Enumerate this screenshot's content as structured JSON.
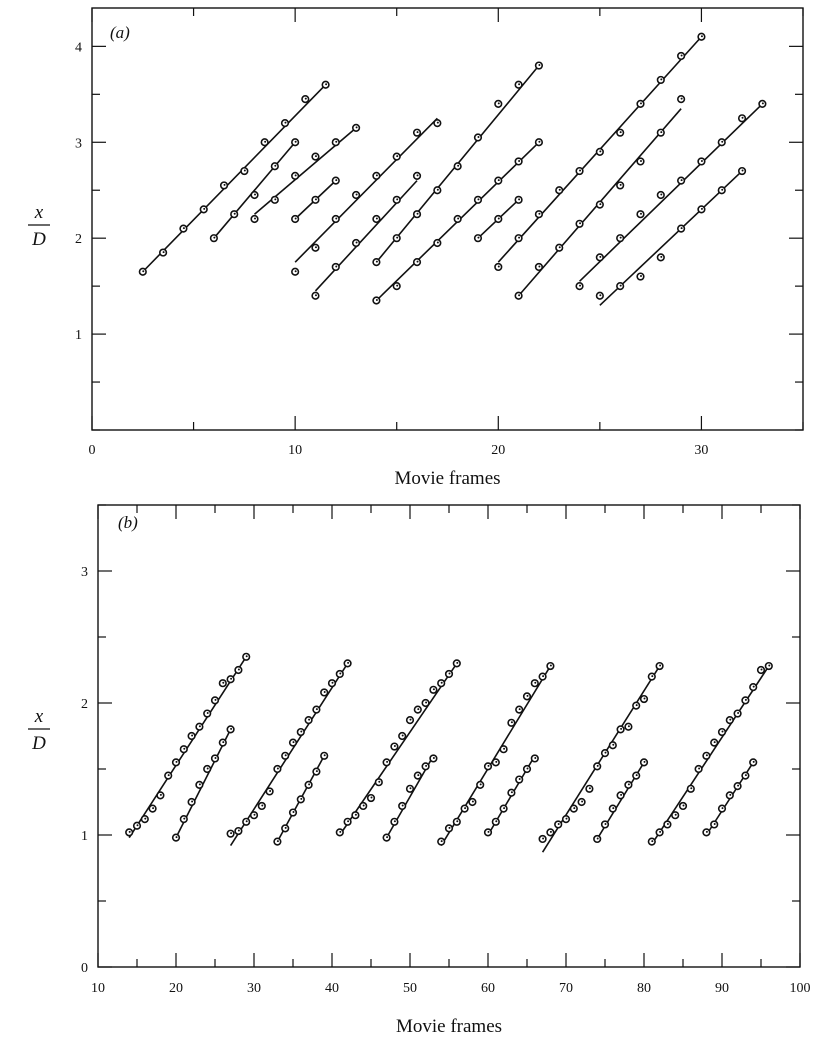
{
  "chart_data": [
    {
      "type": "scatter",
      "panel_label": "(a)",
      "xlabel": "Movie frames",
      "ylabel_num": "x",
      "ylabel_den": "D",
      "xlim": [
        0,
        35
      ],
      "ylim": [
        0,
        4.4
      ],
      "xticks": [
        0,
        10,
        20,
        30
      ],
      "yticks": [
        1,
        2,
        3,
        4
      ],
      "minor_xstep": 5,
      "minor_ystep": 0.5,
      "grid": false,
      "series": [
        {
          "x": [
            2.5,
            3.5,
            4.5,
            5.5,
            6.5,
            7.5,
            8.5,
            9.5,
            10.5,
            11.5
          ],
          "y": [
            1.65,
            1.85,
            2.1,
            2.3,
            2.55,
            2.7,
            3.0,
            3.2,
            3.45,
            3.6
          ],
          "line": [
            [
              2.5,
              1.65
            ],
            [
              11.5,
              3.6
            ]
          ]
        },
        {
          "x": [
            6.0,
            7.0,
            8.0,
            9.0,
            10.0
          ],
          "y": [
            2.0,
            2.25,
            2.45,
            2.75,
            3.0
          ],
          "line": [
            [
              6.0,
              2.0
            ],
            [
              10.0,
              3.0
            ]
          ]
        },
        {
          "x": [
            8.0,
            9.0,
            10.0,
            11.0,
            12.0,
            13.0
          ],
          "y": [
            2.2,
            2.4,
            2.65,
            2.85,
            3.0,
            3.15
          ],
          "line": [
            [
              8.0,
              2.25
            ],
            [
              13.0,
              3.15
            ]
          ]
        },
        {
          "x": [
            10.0,
            11.0,
            12.0
          ],
          "y": [
            2.2,
            2.4,
            2.6
          ],
          "line": [
            [
              10.0,
              2.2
            ],
            [
              12.0,
              2.6
            ]
          ]
        },
        {
          "x": [
            10.0,
            11.0,
            12.0,
            13.0,
            14.0,
            15.0,
            16.0,
            17.0
          ],
          "y": [
            1.65,
            1.9,
            2.2,
            2.45,
            2.65,
            2.85,
            3.1,
            3.2
          ],
          "line": [
            [
              10.0,
              1.75
            ],
            [
              17.0,
              3.25
            ]
          ]
        },
        {
          "x": [
            11.0,
            12.0,
            13.0,
            14.0,
            15.0,
            16.0
          ],
          "y": [
            1.4,
            1.7,
            1.95,
            2.2,
            2.4,
            2.65
          ],
          "line": [
            [
              11.0,
              1.45
            ],
            [
              16.0,
              2.6
            ]
          ]
        },
        {
          "x": [
            14.0,
            15.0,
            16.0,
            17.0,
            18.0,
            19.0,
            20.0,
            21.0,
            22.0
          ],
          "y": [
            1.75,
            2.0,
            2.25,
            2.5,
            2.75,
            3.05,
            3.4,
            3.6,
            3.8
          ],
          "line": [
            [
              14.0,
              1.75
            ],
            [
              22.0,
              3.8
            ]
          ]
        },
        {
          "x": [
            14.0,
            15.0,
            16.0,
            17.0,
            18.0,
            19.0,
            20.0,
            21.0,
            22.0
          ],
          "y": [
            1.35,
            1.5,
            1.75,
            1.95,
            2.2,
            2.4,
            2.6,
            2.8,
            3.0
          ],
          "line": [
            [
              14.0,
              1.35
            ],
            [
              22.0,
              3.0
            ]
          ]
        },
        {
          "x": [
            19.0,
            20.0,
            21.0
          ],
          "y": [
            2.0,
            2.2,
            2.4
          ],
          "line": [
            [
              19.0,
              2.0
            ],
            [
              21.0,
              2.4
            ]
          ]
        },
        {
          "x": [
            20.0,
            21.0,
            22.0,
            23.0,
            24.0,
            25.0,
            26.0,
            27.0,
            28.0,
            29.0,
            30.0
          ],
          "y": [
            1.7,
            2.0,
            2.25,
            2.5,
            2.7,
            2.9,
            3.1,
            3.4,
            3.65,
            3.9,
            4.1
          ],
          "line": [
            [
              20.0,
              1.75
            ],
            [
              30.0,
              4.1
            ]
          ]
        },
        {
          "x": [
            21.0,
            22.0,
            23.0,
            24.0,
            25.0,
            26.0,
            27.0,
            28.0,
            29.0
          ],
          "y": [
            1.4,
            1.7,
            1.9,
            2.15,
            2.35,
            2.55,
            2.8,
            3.1,
            3.45
          ],
          "line": [
            [
              21.0,
              1.4
            ],
            [
              29.0,
              3.35
            ]
          ]
        },
        {
          "x": [
            24.0,
            25.0,
            26.0,
            27.0,
            28.0,
            29.0,
            30.0,
            31.0,
            32.0,
            33.0
          ],
          "y": [
            1.5,
            1.8,
            2.0,
            2.25,
            2.45,
            2.6,
            2.8,
            3.0,
            3.25,
            3.4
          ],
          "line": [
            [
              24.0,
              1.55
            ],
            [
              33.0,
              3.4
            ]
          ]
        },
        {
          "x": [
            25.0,
            26.0,
            27.0,
            28.0,
            29.0,
            30.0,
            31.0,
            32.0
          ],
          "y": [
            1.4,
            1.5,
            1.6,
            1.8,
            2.1,
            2.3,
            2.5,
            2.7
          ],
          "line": [
            [
              25.0,
              1.3
            ],
            [
              32.0,
              2.7
            ]
          ]
        }
      ]
    },
    {
      "type": "scatter",
      "panel_label": "(b)",
      "xlabel": "Movie frames",
      "ylabel_num": "x",
      "ylabel_den": "D",
      "xlim": [
        10,
        100
      ],
      "ylim": [
        0,
        3.5
      ],
      "xticks": [
        10,
        20,
        30,
        40,
        50,
        60,
        70,
        80,
        90,
        100
      ],
      "yticks": [
        0,
        1,
        2,
        3
      ],
      "minor_xstep": 5,
      "minor_ystep": 0.5,
      "grid": false,
      "series": [
        {
          "x": [
            14,
            15,
            16,
            17,
            18,
            19,
            20,
            21,
            22,
            23,
            24,
            25,
            26,
            27,
            28,
            29
          ],
          "y": [
            1.02,
            1.07,
            1.12,
            1.2,
            1.3,
            1.45,
            1.55,
            1.65,
            1.75,
            1.82,
            1.92,
            2.02,
            2.15,
            2.18,
            2.25,
            2.35
          ],
          "line": [
            [
              14,
              0.98
            ],
            [
              29,
              2.35
            ]
          ]
        },
        {
          "x": [
            20,
            21,
            22,
            23,
            24,
            25,
            26,
            27
          ],
          "y": [
            0.98,
            1.12,
            1.25,
            1.38,
            1.5,
            1.58,
            1.7,
            1.8
          ],
          "line": [
            [
              20,
              0.98
            ],
            [
              27,
              1.8
            ]
          ]
        },
        {
          "x": [
            27,
            28,
            29,
            30,
            31,
            32,
            33,
            34,
            35,
            36,
            37,
            38,
            39,
            40,
            41,
            42
          ],
          "y": [
            1.01,
            1.03,
            1.1,
            1.15,
            1.22,
            1.33,
            1.5,
            1.6,
            1.7,
            1.78,
            1.87,
            1.95,
            2.08,
            2.15,
            2.22,
            2.3
          ],
          "line": [
            [
              27,
              0.92
            ],
            [
              42,
              2.3
            ]
          ]
        },
        {
          "x": [
            33,
            34,
            35,
            36,
            37,
            38,
            39
          ],
          "y": [
            0.95,
            1.05,
            1.17,
            1.27,
            1.38,
            1.48,
            1.6
          ],
          "line": [
            [
              33,
              0.95
            ],
            [
              39,
              1.6
            ]
          ]
        },
        {
          "x": [
            41,
            42,
            43,
            44,
            45,
            46,
            47,
            48,
            49,
            50,
            51,
            52,
            53,
            54,
            55,
            56
          ],
          "y": [
            1.02,
            1.1,
            1.15,
            1.22,
            1.28,
            1.4,
            1.55,
            1.67,
            1.75,
            1.87,
            1.95,
            2.0,
            2.1,
            2.15,
            2.22,
            2.3
          ],
          "line": [
            [
              41,
              1.0
            ],
            [
              56,
              2.3
            ]
          ]
        },
        {
          "x": [
            47,
            48,
            49,
            50,
            51,
            52,
            53
          ],
          "y": [
            0.98,
            1.1,
            1.22,
            1.35,
            1.45,
            1.52,
            1.58
          ],
          "line": [
            [
              47,
              0.98
            ],
            [
              53,
              1.6
            ]
          ]
        },
        {
          "x": [
            54,
            55,
            56,
            57,
            58,
            59,
            60,
            61,
            62,
            63,
            64,
            65,
            66,
            67,
            68
          ],
          "y": [
            0.95,
            1.05,
            1.1,
            1.2,
            1.25,
            1.38,
            1.52,
            1.55,
            1.65,
            1.85,
            1.95,
            2.05,
            2.15,
            2.2,
            2.28
          ],
          "line": [
            [
              54,
              0.92
            ],
            [
              68,
              2.28
            ]
          ]
        },
        {
          "x": [
            60,
            61,
            62,
            63,
            64,
            65,
            66
          ],
          "y": [
            1.02,
            1.1,
            1.2,
            1.32,
            1.42,
            1.5,
            1.58
          ],
          "line": [
            [
              60,
              1.0
            ],
            [
              66,
              1.6
            ]
          ]
        },
        {
          "x": [
            67,
            68,
            69,
            70,
            71,
            72,
            73,
            74,
            75,
            76,
            77,
            78,
            79,
            80,
            81,
            82
          ],
          "y": [
            0.97,
            1.02,
            1.08,
            1.12,
            1.2,
            1.25,
            1.35,
            1.52,
            1.62,
            1.68,
            1.8,
            1.82,
            1.98,
            2.03,
            2.2,
            2.28
          ],
          "line": [
            [
              67,
              0.87
            ],
            [
              82,
              2.28
            ]
          ]
        },
        {
          "x": [
            74,
            75,
            76,
            77,
            78,
            79,
            80
          ],
          "y": [
            0.97,
            1.08,
            1.2,
            1.3,
            1.38,
            1.45,
            1.55
          ],
          "line": [
            [
              74,
              0.97
            ],
            [
              80,
              1.55
            ]
          ]
        },
        {
          "x": [
            81,
            82,
            83,
            84,
            85,
            86,
            87,
            88,
            89,
            90,
            91,
            92,
            93,
            94,
            95,
            96
          ],
          "y": [
            0.95,
            1.02,
            1.08,
            1.15,
            1.22,
            1.35,
            1.5,
            1.6,
            1.7,
            1.78,
            1.87,
            1.92,
            2.02,
            2.12,
            2.25,
            2.28
          ],
          "line": [
            [
              81,
              0.93
            ],
            [
              96,
              2.28
            ]
          ]
        },
        {
          "x": [
            88,
            89,
            90,
            91,
            92,
            93,
            94
          ],
          "y": [
            1.02,
            1.08,
            1.2,
            1.3,
            1.37,
            1.45,
            1.55
          ],
          "line": [
            [
              88,
              1.0
            ],
            [
              94,
              1.55
            ]
          ]
        }
      ]
    }
  ]
}
